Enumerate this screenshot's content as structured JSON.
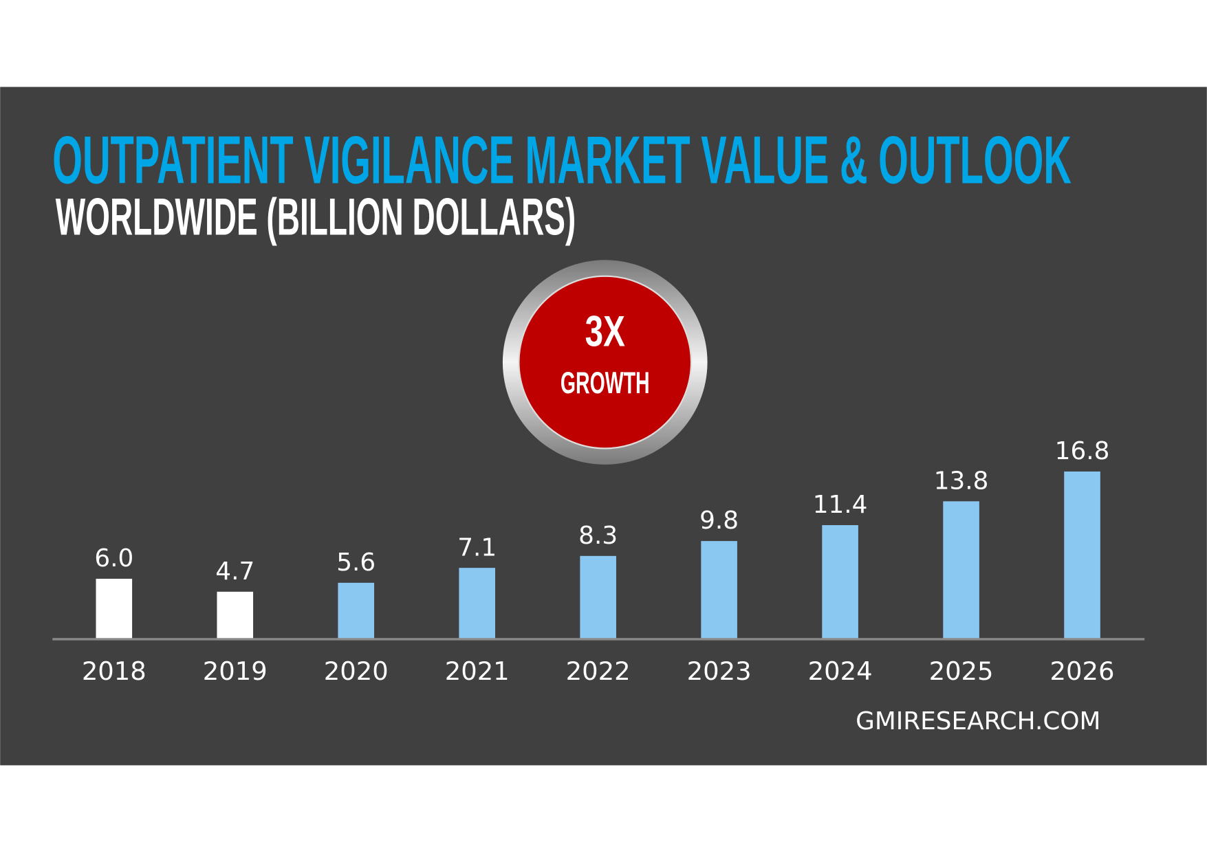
{
  "colors": {
    "panel": "#404040",
    "title": "#00a6e6",
    "forecast_bar": "#8ac8f2",
    "historic_bar": "#ffffff",
    "badge": "#bf0000",
    "axis": "#8a8a8a"
  },
  "chart_data": {
    "type": "bar",
    "title": "OUTPATIENT VIGILANCE MARKET VALUE & OUTLOOK",
    "subtitle": "WORLDWIDE (BILLION DOLLARS)",
    "categories": [
      "2018",
      "2019",
      "2020",
      "2021",
      "2022",
      "2023",
      "2024",
      "2025",
      "2026"
    ],
    "values": [
      6.0,
      4.7,
      5.6,
      7.1,
      8.3,
      9.8,
      11.4,
      13.8,
      16.8
    ],
    "value_labels": [
      "6.0",
      "4.7",
      "5.6",
      "7.1",
      "8.3",
      "9.8",
      "11.4",
      "13.8",
      "16.8"
    ],
    "bar_colors": [
      "#ffffff",
      "#ffffff",
      "#8ac8f2",
      "#8ac8f2",
      "#8ac8f2",
      "#8ac8f2",
      "#8ac8f2",
      "#8ac8f2",
      "#8ac8f2"
    ],
    "ylim": [
      0,
      16.8
    ],
    "grid": false,
    "legend": "none"
  },
  "badge": {
    "big": "3X",
    "small": "GROWTH"
  },
  "source": "GMIRESEARCH.COM"
}
